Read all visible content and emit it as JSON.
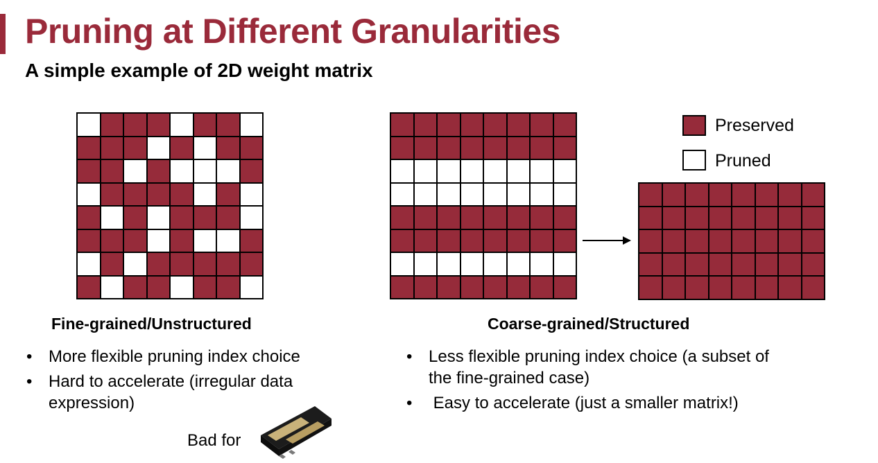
{
  "slide": {
    "title": "Pruning at Different Granularities",
    "subtitle": "A simple example of 2D weight matrix"
  },
  "legend": [
    {
      "label": "Preserved",
      "state": "preserved",
      "color": "#962b3a"
    },
    {
      "label": "Pruned",
      "state": "pruned",
      "color": "#ffffff"
    }
  ],
  "fine_grained": {
    "heading": "Fine-grained/Unstructured",
    "matrix": [
      [
        0,
        1,
        1,
        1,
        0,
        1,
        1,
        0
      ],
      [
        1,
        1,
        1,
        0,
        1,
        0,
        1,
        1
      ],
      [
        1,
        1,
        0,
        1,
        0,
        0,
        0,
        1
      ],
      [
        0,
        1,
        1,
        1,
        1,
        0,
        1,
        0
      ],
      [
        1,
        0,
        1,
        0,
        1,
        1,
        1,
        0
      ],
      [
        1,
        1,
        1,
        0,
        1,
        0,
        0,
        1
      ],
      [
        0,
        1,
        0,
        1,
        1,
        1,
        1,
        1
      ],
      [
        1,
        0,
        1,
        1,
        0,
        1,
        1,
        0
      ]
    ],
    "bullets": [
      "More flexible pruning index choice",
      "Hard to accelerate (irregular data expression)"
    ],
    "bad_for_label": "Bad for",
    "hardware_icon": "gpu-card-icon"
  },
  "coarse_grained": {
    "heading": "Coarse-grained/Structured",
    "row_pattern": [
      1,
      1,
      0,
      0,
      1,
      1,
      0,
      1
    ],
    "columns": 8,
    "pruned_matrix_rows": 5,
    "pruned_matrix_columns": 8,
    "bullets": [
      "Less flexible pruning index choice (a subset of the fine-grained case)",
      " Easy to accelerate (just a smaller matrix!)"
    ]
  },
  "bullet_symbol": "•"
}
